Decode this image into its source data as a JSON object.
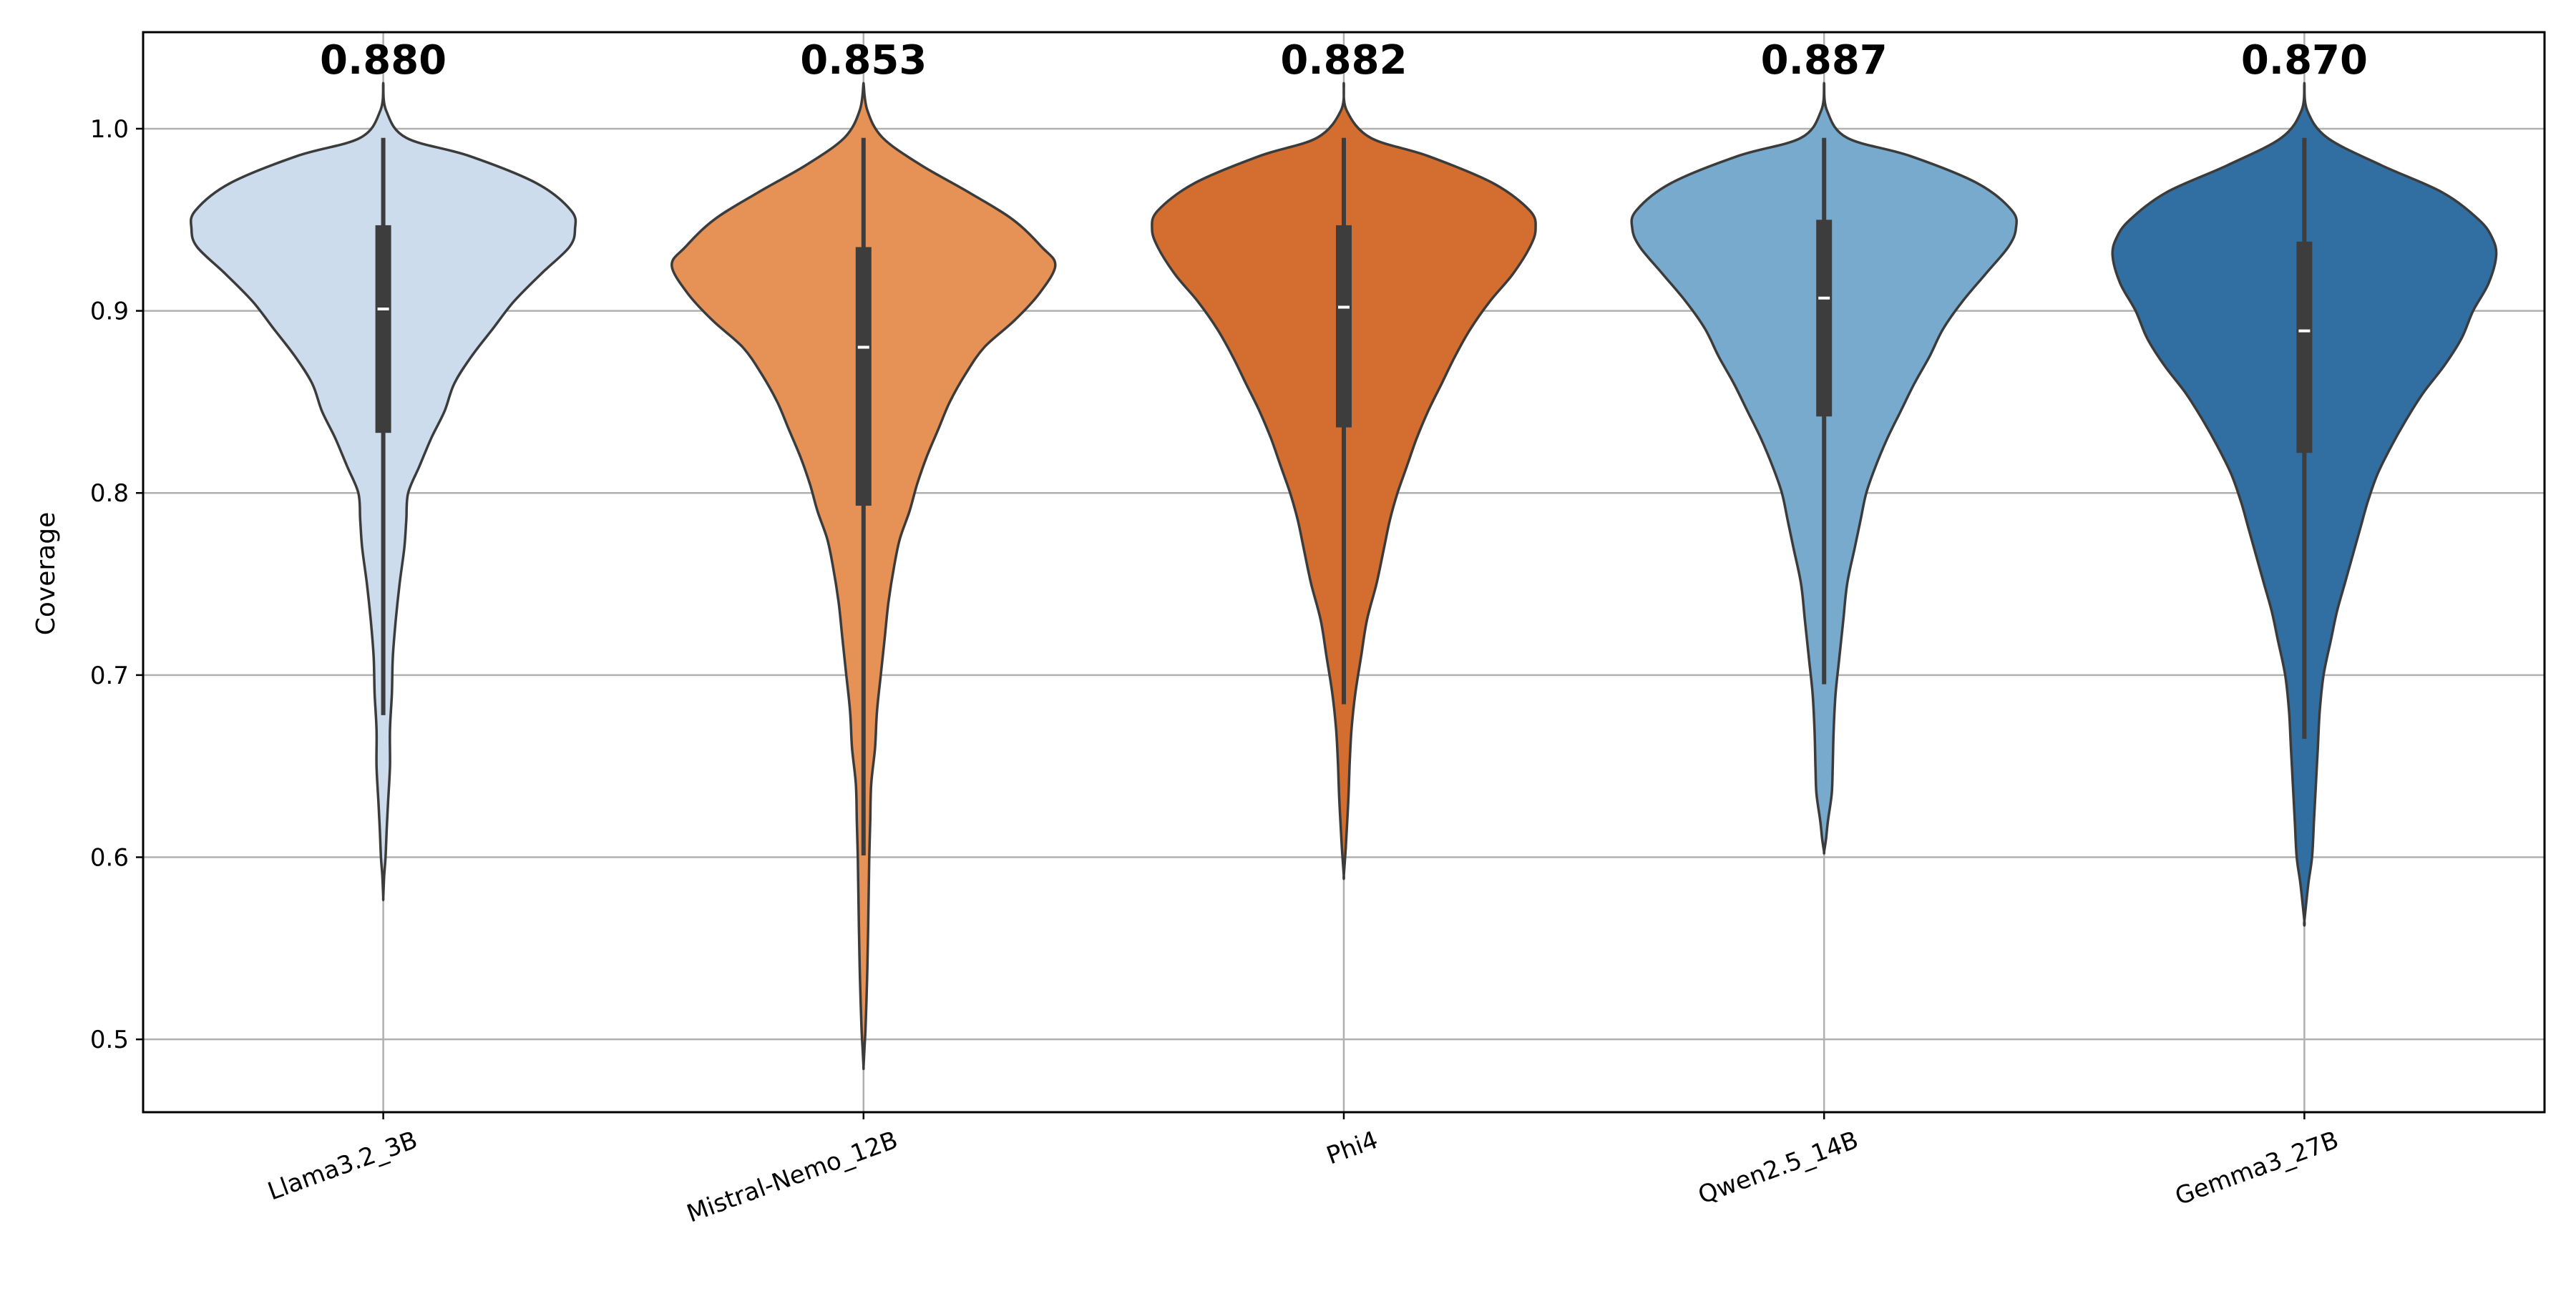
{
  "chart_data": {
    "type": "violin",
    "title": "",
    "xlabel": "",
    "ylabel": "Coverage",
    "ylim": [
      0.46,
      1.053
    ],
    "yticks": [
      "0.5",
      "0.6",
      "0.7",
      "0.8",
      "0.9",
      "1.0"
    ],
    "grid": true,
    "categories": [
      "Llama3.2_3B",
      "Mistral-Nemo_12B",
      "Phi4",
      "Qwen2.5_14B",
      "Gemma3_27B"
    ],
    "annotations": [
      "0.880",
      "0.853",
      "0.882",
      "0.887",
      "0.870"
    ],
    "mean": [
      0.88,
      0.853,
      0.882,
      0.887,
      0.87
    ],
    "colors": [
      "#ccdcec",
      "#e69156",
      "#d46e30",
      "#77aacc",
      "#316fa3"
    ],
    "stats": [
      {
        "median": 0.901,
        "q1": 0.833,
        "q3": 0.947,
        "whisker_low": 0.678,
        "whisker_high": 0.995,
        "min": 0.578,
        "max": 1.025
      },
      {
        "median": 0.88,
        "q1": 0.793,
        "q3": 0.935,
        "whisker_low": 0.601,
        "whisker_high": 0.995,
        "min": 0.485,
        "max": 1.025
      },
      {
        "median": 0.902,
        "q1": 0.836,
        "q3": 0.947,
        "whisker_low": 0.684,
        "whisker_high": 0.995,
        "min": 0.59,
        "max": 1.025
      },
      {
        "median": 0.907,
        "q1": 0.842,
        "q3": 0.95,
        "whisker_low": 0.695,
        "whisker_high": 0.995,
        "min": 0.603,
        "max": 1.025
      },
      {
        "median": 0.889,
        "q1": 0.822,
        "q3": 0.938,
        "whisker_low": 0.665,
        "whisker_high": 0.995,
        "min": 0.565,
        "max": 1.025
      }
    ],
    "density": [
      [
        [
          1.025,
          0
        ],
        [
          1.01,
          0.015
        ],
        [
          0.995,
          0.12
        ],
        [
          0.985,
          0.45
        ],
        [
          0.97,
          0.8
        ],
        [
          0.955,
          0.98
        ],
        [
          0.945,
          1.0
        ],
        [
          0.935,
          0.97
        ],
        [
          0.92,
          0.82
        ],
        [
          0.905,
          0.68
        ],
        [
          0.89,
          0.57
        ],
        [
          0.875,
          0.46
        ],
        [
          0.86,
          0.37
        ],
        [
          0.845,
          0.32
        ],
        [
          0.83,
          0.25
        ],
        [
          0.815,
          0.19
        ],
        [
          0.8,
          0.13
        ],
        [
          0.785,
          0.12
        ],
        [
          0.77,
          0.11
        ],
        [
          0.75,
          0.085
        ],
        [
          0.73,
          0.065
        ],
        [
          0.71,
          0.05
        ],
        [
          0.69,
          0.045
        ],
        [
          0.67,
          0.035
        ],
        [
          0.65,
          0.035
        ],
        [
          0.63,
          0.025
        ],
        [
          0.615,
          0.018
        ],
        [
          0.6,
          0.012
        ],
        [
          0.59,
          0.005
        ],
        [
          0.578,
          0
        ]
      ],
      [
        [
          1.025,
          0
        ],
        [
          1.01,
          0.02
        ],
        [
          0.995,
          0.1
        ],
        [
          0.98,
          0.3
        ],
        [
          0.965,
          0.55
        ],
        [
          0.95,
          0.78
        ],
        [
          0.935,
          0.93
        ],
        [
          0.925,
          1.0
        ],
        [
          0.91,
          0.92
        ],
        [
          0.895,
          0.79
        ],
        [
          0.88,
          0.63
        ],
        [
          0.865,
          0.53
        ],
        [
          0.85,
          0.45
        ],
        [
          0.835,
          0.39
        ],
        [
          0.82,
          0.33
        ],
        [
          0.805,
          0.28
        ],
        [
          0.79,
          0.24
        ],
        [
          0.775,
          0.19
        ],
        [
          0.76,
          0.16
        ],
        [
          0.74,
          0.13
        ],
        [
          0.72,
          0.11
        ],
        [
          0.7,
          0.09
        ],
        [
          0.68,
          0.07
        ],
        [
          0.66,
          0.06
        ],
        [
          0.64,
          0.04
        ],
        [
          0.62,
          0.035
        ],
        [
          0.6,
          0.03
        ],
        [
          0.58,
          0.027
        ],
        [
          0.56,
          0.024
        ],
        [
          0.54,
          0.02
        ],
        [
          0.52,
          0.015
        ],
        [
          0.505,
          0.01
        ],
        [
          0.495,
          0.005
        ],
        [
          0.485,
          0
        ]
      ],
      [
        [
          1.025,
          0
        ],
        [
          1.01,
          0.015
        ],
        [
          0.995,
          0.14
        ],
        [
          0.985,
          0.44
        ],
        [
          0.97,
          0.78
        ],
        [
          0.955,
          0.97
        ],
        [
          0.945,
          1.0
        ],
        [
          0.935,
          0.97
        ],
        [
          0.92,
          0.88
        ],
        [
          0.905,
          0.76
        ],
        [
          0.89,
          0.66
        ],
        [
          0.875,
          0.58
        ],
        [
          0.86,
          0.51
        ],
        [
          0.845,
          0.44
        ],
        [
          0.83,
          0.38
        ],
        [
          0.815,
          0.33
        ],
        [
          0.8,
          0.28
        ],
        [
          0.785,
          0.24
        ],
        [
          0.77,
          0.21
        ],
        [
          0.75,
          0.17
        ],
        [
          0.73,
          0.12
        ],
        [
          0.71,
          0.09
        ],
        [
          0.69,
          0.06
        ],
        [
          0.67,
          0.04
        ],
        [
          0.65,
          0.03
        ],
        [
          0.635,
          0.025
        ],
        [
          0.62,
          0.018
        ],
        [
          0.605,
          0.01
        ],
        [
          0.59,
          0
        ]
      ],
      [
        [
          1.025,
          0
        ],
        [
          1.01,
          0.015
        ],
        [
          0.995,
          0.12
        ],
        [
          0.985,
          0.45
        ],
        [
          0.97,
          0.8
        ],
        [
          0.955,
          0.98
        ],
        [
          0.945,
          1.0
        ],
        [
          0.935,
          0.96
        ],
        [
          0.92,
          0.84
        ],
        [
          0.905,
          0.72
        ],
        [
          0.89,
          0.62
        ],
        [
          0.875,
          0.55
        ],
        [
          0.86,
          0.47
        ],
        [
          0.845,
          0.4
        ],
        [
          0.83,
          0.33
        ],
        [
          0.815,
          0.27
        ],
        [
          0.8,
          0.22
        ],
        [
          0.785,
          0.19
        ],
        [
          0.77,
          0.16
        ],
        [
          0.75,
          0.12
        ],
        [
          0.73,
          0.1
        ],
        [
          0.71,
          0.08
        ],
        [
          0.69,
          0.06
        ],
        [
          0.67,
          0.05
        ],
        [
          0.65,
          0.045
        ],
        [
          0.635,
          0.04
        ],
        [
          0.62,
          0.02
        ],
        [
          0.61,
          0.01
        ],
        [
          0.603,
          0
        ]
      ],
      [
        [
          1.025,
          0
        ],
        [
          1.01,
          0.015
        ],
        [
          0.995,
          0.12
        ],
        [
          0.98,
          0.4
        ],
        [
          0.965,
          0.72
        ],
        [
          0.95,
          0.91
        ],
        [
          0.94,
          0.98
        ],
        [
          0.93,
          1.0
        ],
        [
          0.915,
          0.96
        ],
        [
          0.9,
          0.88
        ],
        [
          0.885,
          0.82
        ],
        [
          0.87,
          0.73
        ],
        [
          0.855,
          0.62
        ],
        [
          0.84,
          0.53
        ],
        [
          0.825,
          0.45
        ],
        [
          0.81,
          0.38
        ],
        [
          0.795,
          0.33
        ],
        [
          0.78,
          0.29
        ],
        [
          0.765,
          0.25
        ],
        [
          0.75,
          0.21
        ],
        [
          0.735,
          0.17
        ],
        [
          0.72,
          0.14
        ],
        [
          0.7,
          0.1
        ],
        [
          0.68,
          0.08
        ],
        [
          0.66,
          0.07
        ],
        [
          0.64,
          0.06
        ],
        [
          0.62,
          0.05
        ],
        [
          0.6,
          0.04
        ],
        [
          0.585,
          0.02
        ],
        [
          0.565,
          0
        ]
      ]
    ]
  }
}
